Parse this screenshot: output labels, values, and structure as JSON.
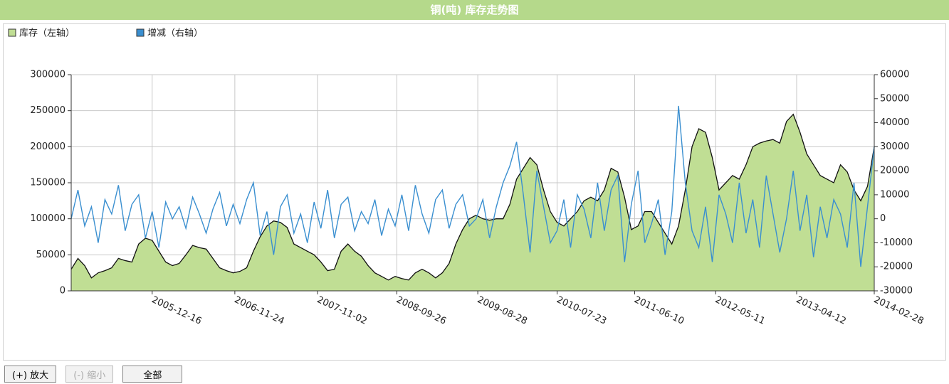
{
  "title": "铜(吨) 库存走势图",
  "buttons": [
    "(+) 放大",
    "(-) 缩小",
    "全部"
  ],
  "chart_data": {
    "type": "area-line",
    "x": [
      "2005-01-14",
      "2005-02-11",
      "2005-03-11",
      "2005-04-08",
      "2005-05-06",
      "2005-06-03",
      "2005-07-01",
      "2005-07-29",
      "2005-08-26",
      "2005-09-23",
      "2005-10-21",
      "2005-11-18",
      "2005-12-16",
      "2006-01-13",
      "2006-02-10",
      "2006-03-10",
      "2006-04-07",
      "2006-05-05",
      "2006-06-02",
      "2006-06-30",
      "2006-07-28",
      "2006-08-25",
      "2006-09-22",
      "2006-10-20",
      "2006-11-17",
      "2006-12-15",
      "2007-01-12",
      "2007-02-09",
      "2007-03-09",
      "2007-04-06",
      "2007-05-04",
      "2007-06-01",
      "2007-06-29",
      "2007-07-27",
      "2007-08-24",
      "2007-09-21",
      "2007-10-19",
      "2007-11-16",
      "2007-12-14",
      "2008-01-11",
      "2008-02-08",
      "2008-03-07",
      "2008-04-04",
      "2008-05-02",
      "2008-05-30",
      "2008-06-27",
      "2008-07-25",
      "2008-08-22",
      "2008-09-19",
      "2008-10-17",
      "2008-11-14",
      "2008-12-12",
      "2009-01-09",
      "2009-02-06",
      "2009-03-06",
      "2009-04-03",
      "2009-05-01",
      "2009-05-29",
      "2009-06-26",
      "2009-07-24",
      "2009-08-21",
      "2009-09-18",
      "2009-10-16",
      "2009-11-13",
      "2009-12-11",
      "2010-01-08",
      "2010-02-05",
      "2010-03-05",
      "2010-04-02",
      "2010-04-30",
      "2010-05-28",
      "2010-06-25",
      "2010-07-23",
      "2010-08-20",
      "2010-09-17",
      "2010-10-15",
      "2010-11-12",
      "2010-12-10",
      "2011-01-07",
      "2011-02-04",
      "2011-03-04",
      "2011-04-01",
      "2011-04-29",
      "2011-05-27",
      "2011-06-24",
      "2011-07-22",
      "2011-08-19",
      "2011-09-16",
      "2011-10-14",
      "2011-11-11",
      "2011-12-09",
      "2012-01-06",
      "2012-02-03",
      "2012-03-02",
      "2012-03-30",
      "2012-04-27",
      "2012-05-25",
      "2012-06-22",
      "2012-07-20",
      "2012-08-17",
      "2012-09-14",
      "2012-10-12",
      "2012-11-09",
      "2012-12-07",
      "2013-01-04",
      "2013-02-01",
      "2013-03-01",
      "2013-03-29",
      "2013-04-26",
      "2013-05-24",
      "2013-06-21",
      "2013-07-19",
      "2013-08-16",
      "2013-09-13",
      "2013-10-11",
      "2013-11-08",
      "2013-12-06",
      "2014-01-03",
      "2014-01-31",
      "2014-02-28"
    ],
    "xlim": [
      "2005-01-14",
      "2014-02-28"
    ],
    "xticks": [
      "2005-12-16",
      "2006-11-24",
      "2007-11-02",
      "2008-09-26",
      "2009-08-28",
      "2010-07-23",
      "2011-06-10",
      "2012-05-11",
      "2013-04-12",
      "2014-02-28"
    ],
    "ylim": [
      0,
      300000
    ],
    "yticks": [
      0,
      50000,
      100000,
      150000,
      200000,
      250000,
      300000
    ],
    "y2lim": [
      -30000,
      60000
    ],
    "y2ticks": [
      -30000,
      -20000,
      -10000,
      0,
      10000,
      20000,
      30000,
      40000,
      50000,
      60000
    ],
    "grid": true,
    "series": [
      {
        "name": "库存（左轴）",
        "color": "#c0de94",
        "values": [
          30000,
          45000,
          35000,
          18000,
          25000,
          28000,
          32000,
          45000,
          42000,
          40000,
          65000,
          73000,
          70000,
          55000,
          40000,
          35000,
          38000,
          50000,
          63000,
          60000,
          58000,
          45000,
          32000,
          28000,
          25000,
          27000,
          32000,
          55000,
          75000,
          90000,
          97000,
          95000,
          88000,
          65000,
          60000,
          55000,
          50000,
          40000,
          28000,
          30000,
          55000,
          65000,
          55000,
          48000,
          35000,
          25000,
          20000,
          15000,
          20000,
          17000,
          15000,
          25000,
          30000,
          25000,
          18000,
          25000,
          38000,
          65000,
          85000,
          100000,
          105000,
          100000,
          98000,
          100000,
          100000,
          120000,
          155000,
          170000,
          185000,
          175000,
          140000,
          110000,
          95000,
          90000,
          100000,
          110000,
          125000,
          130000,
          125000,
          140000,
          170000,
          165000,
          130000,
          85000,
          90000,
          110000,
          110000,
          95000,
          80000,
          65000,
          90000,
          140000,
          200000,
          225000,
          220000,
          185000,
          140000,
          150000,
          160000,
          155000,
          175000,
          200000,
          205000,
          208000,
          210000,
          205000,
          235000,
          245000,
          220000,
          190000,
          175000,
          160000,
          155000,
          150000,
          175000,
          165000,
          140000,
          125000,
          145000,
          200000
        ]
      },
      {
        "name": "增减（右轴）",
        "color": "#3a8fd0",
        "axis": "y2",
        "values": [
          0,
          12000,
          -3000,
          5000,
          -10000,
          8000,
          2000,
          14000,
          -5000,
          6000,
          10000,
          -8000,
          3000,
          -12000,
          7000,
          0,
          5000,
          -4000,
          9000,
          2000,
          -6000,
          4000,
          11000,
          -3000,
          6000,
          -2000,
          8000,
          15000,
          -7000,
          3000,
          -15000,
          5000,
          10000,
          -6000,
          2000,
          -10000,
          7000,
          -4000,
          12000,
          -8000,
          6000,
          9000,
          -5000,
          3000,
          -2000,
          8000,
          -7000,
          4000,
          -3000,
          10000,
          -5000,
          14000,
          2000,
          -6000,
          8000,
          12000,
          -4000,
          6000,
          10000,
          -3000,
          0,
          8000,
          -8000,
          5000,
          15000,
          22000,
          32000,
          10000,
          -14000,
          20000,
          5000,
          -10000,
          -5000,
          8000,
          -12000,
          10000,
          4000,
          -8000,
          15000,
          -5000,
          12000,
          18000,
          -18000,
          6000,
          20000,
          -10000,
          -2000,
          8000,
          -15000,
          3000,
          47000,
          15000,
          -5000,
          -12000,
          5000,
          -18000,
          10000,
          2000,
          -10000,
          15000,
          -6000,
          8000,
          -12000,
          18000,
          2000,
          -14000,
          0,
          20000,
          -5000,
          10000,
          -16000,
          5000,
          -8000,
          8000,
          2000,
          -12000,
          15000,
          -20000,
          5000,
          30000
        ]
      }
    ]
  }
}
